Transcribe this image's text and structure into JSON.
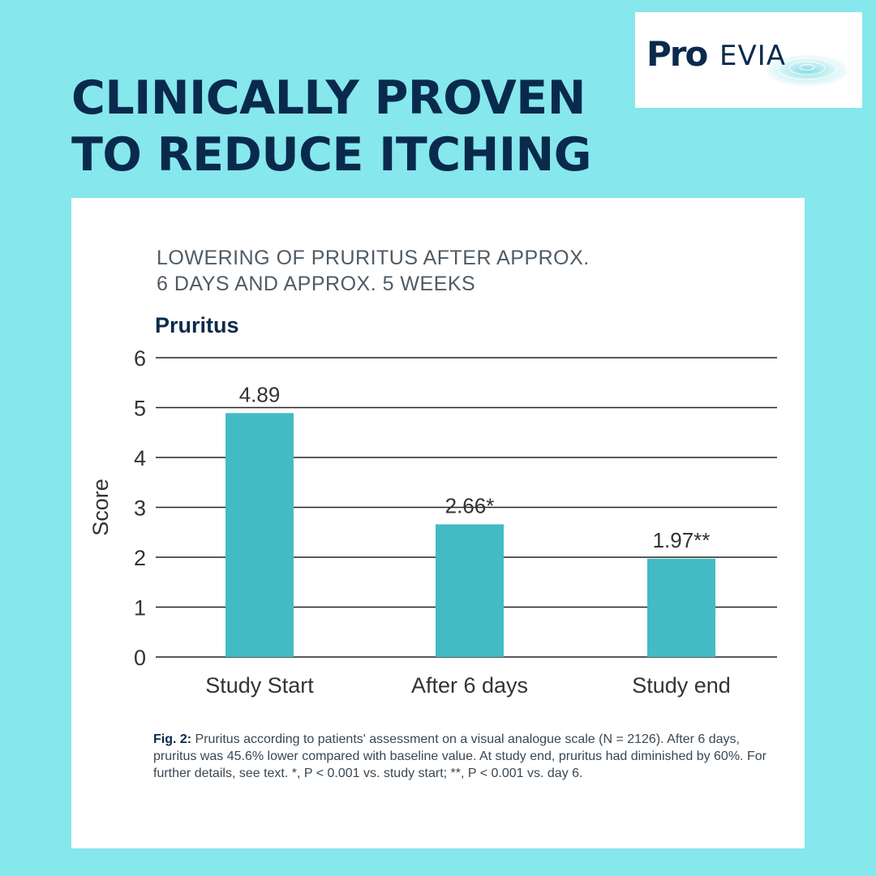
{
  "headline": {
    "line1": "CLINICALLY PROVEN",
    "line2": "TO REDUCE ITCHING"
  },
  "logo": {
    "text_bold": "Pro",
    "text_light": "EVIA"
  },
  "colors": {
    "background": "#86e7ec",
    "navy": "#0a2a4d",
    "bar": "#43bbc4"
  },
  "card": {
    "subtitle_line1": "LOWERING OF PRURITUS AFTER APPROX.",
    "subtitle_line2": "6 DAYS AND APPROX. 5 WEEKS",
    "caption_label": "Fig. 2:",
    "caption_text": " Pruritus according to patients' assessment on a visual analogue scale (N = 2126). After 6 days, pruritus was 45.6% lower compared with baseline value. At study end, pruritus had diminished by 60%. For further details, see text. *, P < 0.001 vs. study start; **, P < 0.001 vs. day 6."
  },
  "chart_data": {
    "type": "bar",
    "title": "Pruritus",
    "ylabel": "Score",
    "xlabel": "",
    "ylim": [
      0,
      6
    ],
    "yticks": [
      0,
      1,
      2,
      3,
      4,
      5,
      6
    ],
    "grid": true,
    "categories": [
      "Study Start",
      "After 6 days",
      "Study end"
    ],
    "values": [
      4.89,
      2.66,
      1.97
    ],
    "value_labels": [
      "4.89",
      "2.66*",
      "1.97**"
    ]
  }
}
